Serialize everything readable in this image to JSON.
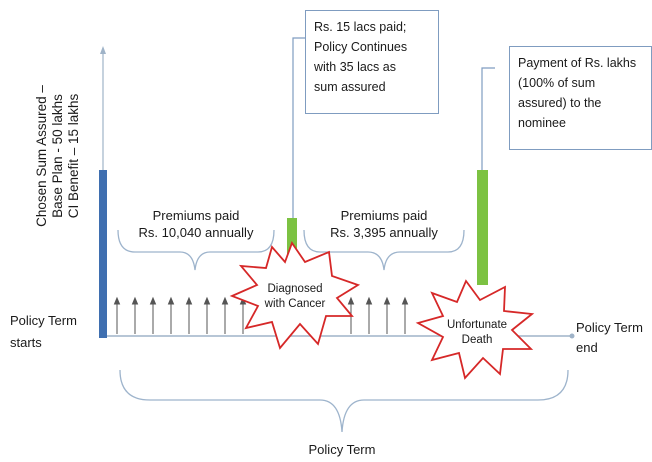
{
  "left_label": {
    "line1": "Chosen Sum Assured –",
    "line2": "Base Plan -  50 lakhs",
    "line3": "CI Benefit – 15 lakhs"
  },
  "premiums_1": {
    "line1": "Premiums paid",
    "line2": "Rs. 10,040 annually"
  },
  "premiums_2": {
    "line1": "Premiums paid",
    "line2": "Rs. 3,395 annually"
  },
  "callout_1": {
    "line1": "Rs. 15 lacs paid;",
    "line2": "Policy Continues",
    "line3": "with 35 lacs as",
    "line4": "sum assured"
  },
  "callout_2": {
    "line1": "Payment of Rs.  lakhs",
    "line2": "(100% of sum",
    "line3": "assured) to the",
    "line4": "nominee"
  },
  "burst_cancer": {
    "line1": "Diagnosed",
    "line2": "with Cancer"
  },
  "burst_death": {
    "line1": "Unfortunate",
    "line2": "Death"
  },
  "term_start": {
    "line1": "Policy Term",
    "line2": "starts"
  },
  "term_end": {
    "line1": "Policy Term",
    "line2": "end"
  },
  "policy_term": "Policy Term",
  "colors": {
    "blue_bar": "#3f6fb0",
    "green_bar": "#7cc242",
    "burst_stroke": "#d62828",
    "bracket": "#9eb4cc",
    "callout_border": "#7f9cc0",
    "axis": "#9fb3c8"
  }
}
